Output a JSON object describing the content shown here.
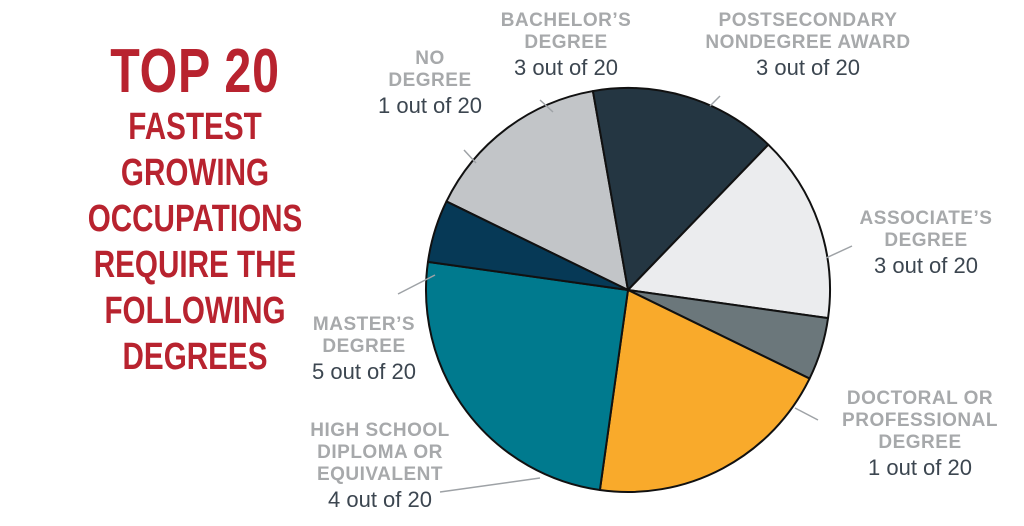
{
  "headline": {
    "line1": "TOP 20",
    "line2": "FASTEST GROWING",
    "line3": "OCCUPATIONS",
    "line4": "REQUIRE THE",
    "line5": "FOLLOWING",
    "line6": "DEGREES"
  },
  "chart_data": {
    "type": "pie",
    "total": 20,
    "slices": [
      {
        "name_lines": [
          "BACHELOR’S",
          "DEGREE"
        ],
        "value_label": "3 out of 20",
        "value": 3,
        "color": "#c2c5c8"
      },
      {
        "name_lines": [
          "POSTSECONDARY",
          "NONDEGREE AWARD"
        ],
        "value_label": "3 out of 20",
        "value": 3,
        "color": "#243642"
      },
      {
        "name_lines": [
          "ASSOCIATE’S",
          "DEGREE"
        ],
        "value_label": "3 out of 20",
        "value": 3,
        "color": "#ebecee"
      },
      {
        "name_lines": [
          "DOCTORAL OR",
          "PROFESSIONAL",
          "DEGREE"
        ],
        "value_label": "1 out of 20",
        "value": 1,
        "color": "#6b777b"
      },
      {
        "name_lines": [
          "HIGH SCHOOL",
          "DIPLOMA OR",
          "EQUIVALENT"
        ],
        "value_label": "4 out of 20",
        "value": 4,
        "color": "#f9aa2b"
      },
      {
        "name_lines": [
          "MASTER’S",
          "DEGREE"
        ],
        "value_label": "5 out of 20",
        "value": 5,
        "color": "#007a8e"
      },
      {
        "name_lines": [
          "NO",
          "DEGREE"
        ],
        "value_label": "1 out of 20",
        "value": 1,
        "color": "#063956"
      }
    ]
  }
}
